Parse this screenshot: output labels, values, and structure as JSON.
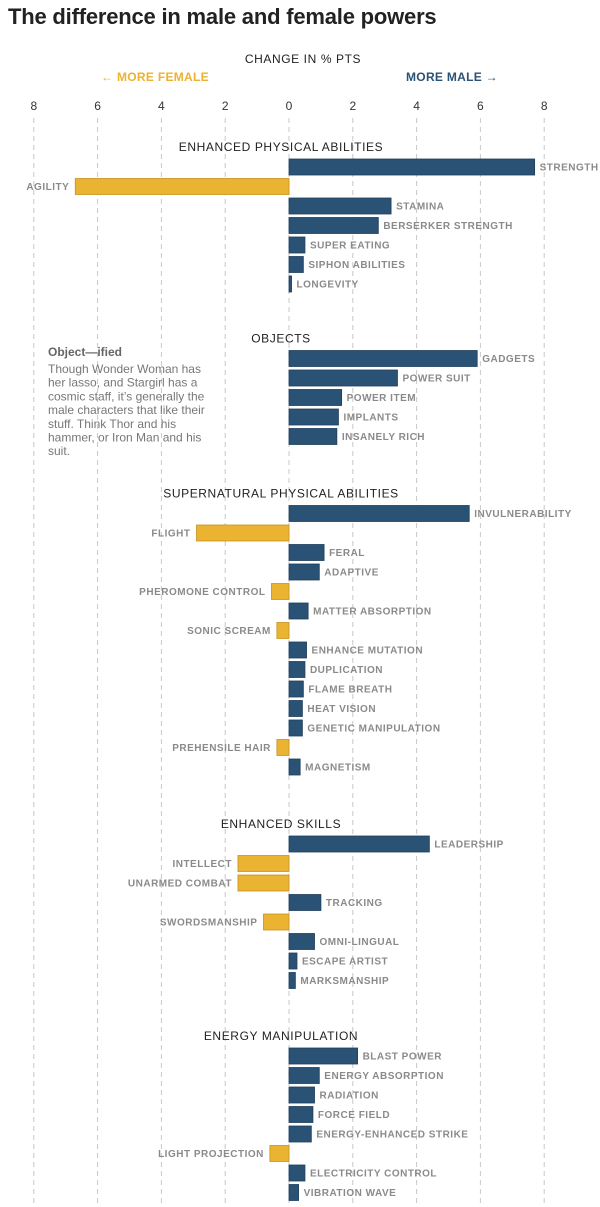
{
  "chart_data": {
    "type": "bar",
    "orientation": "horizontal",
    "title": "The difference in male and female powers",
    "xlabel": "CHANGE IN % PTS",
    "direction_labels": {
      "left": "← MORE FEMALE",
      "right": "MORE MALE →"
    },
    "xlim": [
      -8.5,
      8.8
    ],
    "x_ticks": [
      -8,
      -6,
      -4,
      -2,
      0,
      2,
      4,
      6,
      8
    ],
    "x_tick_labels": [
      "8",
      "6",
      "4",
      "2",
      "0",
      "2",
      "4",
      "6",
      "8"
    ],
    "grid": true,
    "colors": {
      "male": "#2a5274",
      "female": "#eab332",
      "male_edge": "#1f3f5c",
      "female_edge": "#c8921f"
    },
    "groups": [
      {
        "name": "ENHANCED PHYSICAL ABILITIES",
        "items": [
          {
            "label": "STRENGTH",
            "value": 7.7
          },
          {
            "label": "AGILITY",
            "value": -6.7
          },
          {
            "label": "STAMINA",
            "value": 3.2
          },
          {
            "label": "BERSERKER STRENGTH",
            "value": 2.8
          },
          {
            "label": "SUPER EATING",
            "value": 0.5
          },
          {
            "label": "SIPHON ABILITIES",
            "value": 0.45
          },
          {
            "label": "LONGEVITY",
            "value": 0.08
          }
        ]
      },
      {
        "name": "OBJECTS",
        "items": [
          {
            "label": "GADGETS",
            "value": 5.9
          },
          {
            "label": "POWER SUIT",
            "value": 3.4
          },
          {
            "label": "POWER ITEM",
            "value": 1.65
          },
          {
            "label": "IMPLANTS",
            "value": 1.55
          },
          {
            "label": "INSANELY RICH",
            "value": 1.5
          }
        ]
      },
      {
        "name": "SUPERNATURAL PHYSICAL ABILITIES",
        "items": [
          {
            "label": "INVULNERABILITY",
            "value": 5.65
          },
          {
            "label": "FLIGHT",
            "value": -2.9
          },
          {
            "label": "FERAL",
            "value": 1.1
          },
          {
            "label": "ADAPTIVE",
            "value": 0.95
          },
          {
            "label": "PHEROMONE CONTROL",
            "value": -0.55
          },
          {
            "label": "MATTER ABSORPTION",
            "value": 0.6
          },
          {
            "label": "SONIC SCREAM",
            "value": -0.38
          },
          {
            "label": "ENHANCE MUTATION",
            "value": 0.55
          },
          {
            "label": "DUPLICATION",
            "value": 0.5
          },
          {
            "label": "FLAME BREATH",
            "value": 0.45
          },
          {
            "label": "HEAT VISION",
            "value": 0.42
          },
          {
            "label": "GENETIC MANIPULATION",
            "value": 0.42
          },
          {
            "label": "PREHENSILE HAIR",
            "value": -0.38
          },
          {
            "label": "MAGNETISM",
            "value": 0.35
          }
        ]
      },
      {
        "name": "ENHANCED SKILLS",
        "items": [
          {
            "label": "LEADERSHIP",
            "value": 4.4
          },
          {
            "label": "INTELLECT",
            "value": -1.6
          },
          {
            "label": "UNARMED COMBAT",
            "value": -1.6
          },
          {
            "label": "TRACKING",
            "value": 1.0
          },
          {
            "label": "SWORDSMANSHIP",
            "value": -0.8
          },
          {
            "label": "OMNI-LINGUAL",
            "value": 0.8
          },
          {
            "label": "ESCAPE ARTIST",
            "value": 0.25
          },
          {
            "label": "MARKSMANSHIP",
            "value": 0.2
          }
        ]
      },
      {
        "name": "ENERGY MANIPULATION",
        "items": [
          {
            "label": "BLAST POWER",
            "value": 2.15
          },
          {
            "label": "ENERGY ABSORPTION",
            "value": 0.95
          },
          {
            "label": "RADIATION",
            "value": 0.8
          },
          {
            "label": "FORCE FIELD",
            "value": 0.75
          },
          {
            "label": "ENERGY-ENHANCED STRIKE",
            "value": 0.7
          },
          {
            "label": "LIGHT PROJECTION",
            "value": -0.6
          },
          {
            "label": "ELECTRICITY CONTROL",
            "value": 0.5
          },
          {
            "label": "VIBRATION WAVE",
            "value": 0.3
          }
        ]
      }
    ],
    "annotation": {
      "title": "Object—ified",
      "lines": [
        "Though Wonder Woman has",
        "her lasso, and Stargirl has a",
        "cosmic staff, it’s generally the",
        "male characters that like their",
        "stuff. Think Thor and his",
        "hammer, or Iron Man and his",
        "suit."
      ]
    }
  }
}
